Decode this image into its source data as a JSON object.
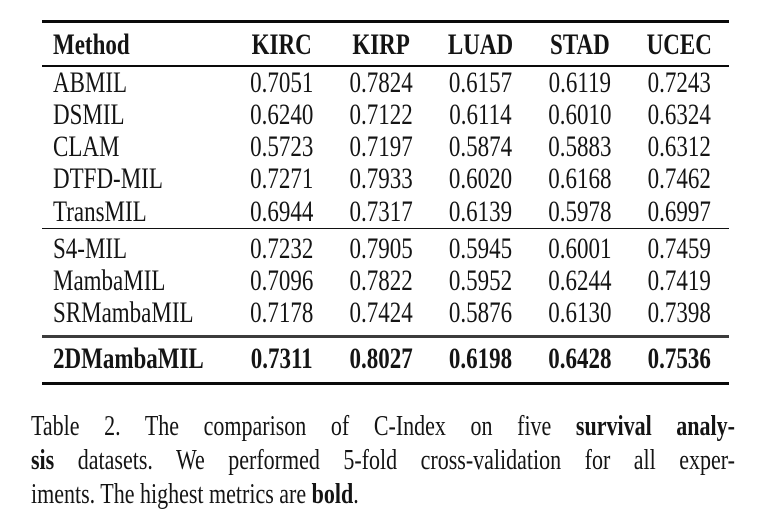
{
  "page": {
    "background": "#ffffff",
    "text_color": "#141414",
    "rule_color": "#0a0a0a"
  },
  "table": {
    "columns": [
      {
        "label": "Method"
      },
      {
        "label": "KIRC"
      },
      {
        "label": "KIRP"
      },
      {
        "label": "LUAD"
      },
      {
        "label": "STAD"
      },
      {
        "label": "UCEC"
      }
    ],
    "groups": [
      {
        "bold": false,
        "rows": [
          {
            "method": "ABMIL",
            "values": [
              "0.7051",
              "0.7824",
              "0.6157",
              "0.6119",
              "0.7243"
            ]
          },
          {
            "method": "DSMIL",
            "values": [
              "0.6240",
              "0.7122",
              "0.6114",
              "0.6010",
              "0.6324"
            ]
          },
          {
            "method": "CLAM",
            "values": [
              "0.5723",
              "0.7197",
              "0.5874",
              "0.5883",
              "0.6312"
            ]
          },
          {
            "method": "DTFD-MIL",
            "values": [
              "0.7271",
              "0.7933",
              "0.6020",
              "0.6168",
              "0.7462"
            ]
          },
          {
            "method": "TransMIL",
            "values": [
              "0.6944",
              "0.7317",
              "0.6139",
              "0.5978",
              "0.6997"
            ]
          }
        ]
      },
      {
        "bold": false,
        "rows": [
          {
            "method": "S4-MIL",
            "values": [
              "0.7232",
              "0.7905",
              "0.5945",
              "0.6001",
              "0.7459"
            ]
          },
          {
            "method": "MambaMIL",
            "values": [
              "0.7096",
              "0.7822",
              "0.5952",
              "0.6244",
              "0.7419"
            ]
          },
          {
            "method": "SRMambaMIL",
            "values": [
              "0.7178",
              "0.7424",
              "0.5876",
              "0.6130",
              "0.7398"
            ]
          }
        ]
      },
      {
        "bold": true,
        "rows": [
          {
            "method": "2DMambaMIL",
            "values": [
              "0.7311",
              "0.8027",
              "0.6198",
              "0.6428",
              "0.7536"
            ]
          }
        ]
      }
    ]
  },
  "caption": {
    "lines": [
      {
        "justify": true,
        "segments": [
          {
            "text": "Table 2.  The comparison of C-Index on five ",
            "bold": false
          },
          {
            "text": "survival analy-",
            "bold": true
          }
        ]
      },
      {
        "justify": true,
        "segments": [
          {
            "text": "sis",
            "bold": true
          },
          {
            "text": " datasets.  We performed 5-fold cross-validation for all exper-",
            "bold": false
          }
        ]
      },
      {
        "justify": false,
        "segments": [
          {
            "text": "iments. The highest metrics are ",
            "bold": false
          },
          {
            "text": "bold",
            "bold": true
          },
          {
            "text": ".",
            "bold": false
          }
        ]
      }
    ]
  }
}
